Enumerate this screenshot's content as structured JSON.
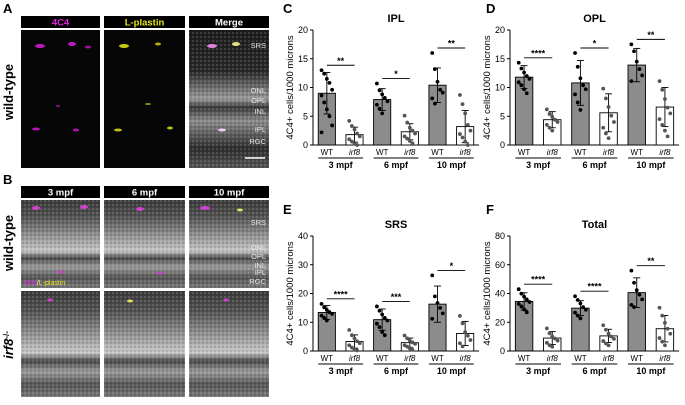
{
  "panel_letters": {
    "A": "A",
    "B": "B",
    "C": "C",
    "D": "D",
    "E": "E",
    "F": "F"
  },
  "micrographs": {
    "panel_a": {
      "headers": [
        "4C4",
        "L-plastin",
        "Merge"
      ],
      "row_label": "wild-type",
      "layer_labels": [
        "SRS",
        "ONL",
        "OPL",
        "INL",
        "IPL",
        "RGC"
      ],
      "colors": {
        "4C4": "#e020e0",
        "L-plastin": "#e8e820",
        "Merge": "#ffffff"
      }
    },
    "panel_b": {
      "headers": [
        "3 mpf",
        "6 mpf",
        "10 mpf"
      ],
      "row_labels": [
        "wild-type",
        "irf8",
        "-/-"
      ],
      "layer_labels": [
        "SRS",
        "ONL",
        "OPL",
        "INL",
        "IPL",
        "RGC"
      ],
      "stain_legend": [
        "4C4",
        "/",
        "L-plastin"
      ]
    }
  },
  "chart_data": [
    {
      "type": "bar",
      "panel": "C",
      "title": "IPL",
      "ylabel": "4C4+ cells/1000 microns",
      "ylim": [
        0,
        20
      ],
      "yticks": [
        0,
        5,
        10,
        15,
        20
      ],
      "categories": [
        "WT",
        "irf8",
        "WT",
        "irf8",
        "WT",
        "irf8"
      ],
      "groups": [
        "3 mpf",
        "6 mpf",
        "10 mpf"
      ],
      "values": [
        9.0,
        1.8,
        7.9,
        2.3,
        10.4,
        3.2
      ],
      "errors": [
        3.6,
        1.3,
        1.9,
        1.4,
        3.0,
        2.8
      ],
      "significance": [
        "**",
        "*",
        "**"
      ],
      "points": [
        [
          13.0,
          12.4,
          11.5,
          10.8,
          9.6,
          8.6,
          7.4,
          6.2,
          5.0,
          3.4,
          2.2
        ],
        [
          4.2,
          3.3,
          2.7,
          2.0,
          1.5,
          1.0,
          0.6,
          0.2,
          0.0
        ],
        [
          10.7,
          9.5,
          8.8,
          8.2,
          7.6,
          7.0,
          6.3,
          5.5
        ],
        [
          5.1,
          3.9,
          3.0,
          2.5,
          2.0,
          1.5,
          1.1,
          0.7,
          0.3
        ],
        [
          16.0,
          13.2,
          11.0,
          9.6,
          9.1,
          8.1,
          7.2
        ],
        [
          8.7,
          7.1,
          5.5,
          3.5,
          2.5,
          1.9,
          1.3,
          0.6,
          0.0
        ]
      ]
    },
    {
      "type": "bar",
      "panel": "D",
      "title": "OPL",
      "ylabel": "4C4+ cells/1000 microns",
      "ylim": [
        0,
        20
      ],
      "yticks": [
        0,
        5,
        10,
        15,
        20
      ],
      "categories": [
        "WT",
        "irf8",
        "WT",
        "irf8",
        "WT",
        "irf8"
      ],
      "groups": [
        "3 mpf",
        "6 mpf",
        "10 mpf"
      ],
      "values": [
        11.8,
        4.4,
        10.8,
        5.6,
        13.9,
        6.6
      ],
      "errors": [
        2.0,
        1.4,
        3.9,
        3.3,
        2.9,
        3.4
      ],
      "significance": [
        "****",
        "*",
        "**"
      ],
      "points": [
        [
          14.3,
          13.3,
          12.6,
          12.0,
          11.5,
          10.9,
          10.4,
          9.7,
          9.0
        ],
        [
          6.2,
          5.4,
          4.9,
          4.4,
          4.0,
          3.5,
          3.0,
          2.5
        ],
        [
          16.0,
          13.6,
          11.6,
          10.4,
          9.7,
          8.8,
          7.4,
          6.1
        ],
        [
          9.8,
          8.1,
          6.6,
          5.1,
          4.0,
          3.0,
          2.0,
          1.2
        ],
        [
          17.5,
          16.3,
          14.5,
          13.2,
          12.1,
          11.1
        ],
        [
          11.1,
          9.6,
          8.0,
          6.5,
          5.5,
          4.5,
          3.5,
          2.5,
          1.5
        ]
      ]
    },
    {
      "type": "bar",
      "panel": "E",
      "title": "SRS",
      "ylabel": "4C4+ cells/1000 microns",
      "ylim": [
        0,
        40
      ],
      "yticks": [
        0,
        10,
        20,
        30,
        40
      ],
      "categories": [
        "WT",
        "irf8",
        "WT",
        "irf8",
        "WT",
        "irf8"
      ],
      "groups": [
        "3 mpf",
        "6 mpf",
        "10 mpf"
      ],
      "values": [
        13.4,
        3.3,
        10.9,
        2.9,
        16.3,
        6.1
      ],
      "errors": [
        2.4,
        2.3,
        3.7,
        1.6,
        6.3,
        4.2
      ],
      "significance": [
        "****",
        "***",
        "*"
      ],
      "points": [
        [
          16.4,
          15.2,
          14.3,
          13.5,
          12.9,
          12.3,
          11.5,
          10.6
        ],
        [
          7.3,
          5.5,
          4.4,
          3.4,
          2.7,
          2.0,
          1.2,
          0.6,
          0.2
        ],
        [
          15.5,
          14.0,
          12.7,
          11.5,
          10.6,
          9.5,
          8.3,
          6.6,
          5.5
        ],
        [
          5.4,
          4.4,
          3.6,
          3.0,
          2.5,
          2.0,
          1.5,
          0.9,
          0.4
        ],
        [
          26.3,
          19.0,
          16.7,
          15.0,
          13.1,
          11.2
        ],
        [
          12.2,
          9.6,
          6.6,
          5.3,
          3.8,
          2.7,
          1.6
        ]
      ]
    },
    {
      "type": "bar",
      "panel": "F",
      "title": "Total",
      "ylabel": "4C4+ cells/1000 microns",
      "ylim": [
        0,
        80
      ],
      "yticks": [
        0,
        20,
        40,
        60,
        80
      ],
      "categories": [
        "WT",
        "irf8",
        "WT",
        "irf8",
        "WT",
        "irf8"
      ],
      "groups": [
        "3 mpf",
        "6 mpf",
        "10 mpf"
      ],
      "values": [
        34.5,
        9.0,
        29.8,
        10.5,
        40.6,
        15.5
      ],
      "errors": [
        6.0,
        4.5,
        5.2,
        4.6,
        10.3,
        9.2
      ],
      "significance": [
        "****",
        "****",
        "**"
      ],
      "points": [
        [
          43.0,
          39.9,
          37.8,
          35.9,
          34.1,
          32.8,
          31.0,
          28.9,
          26.9
        ],
        [
          15.7,
          12.3,
          10.1,
          8.7,
          7.2,
          5.7,
          4.0,
          3.0
        ],
        [
          38.1,
          35.5,
          33.1,
          30.5,
          28.7,
          26.7,
          24.6,
          22.7
        ],
        [
          17.9,
          14.8,
          12.1,
          10.1,
          8.4,
          6.9,
          5.2,
          3.9
        ],
        [
          55.9,
          47.5,
          42.3,
          39.2,
          35.9,
          32.1,
          30.5
        ],
        [
          30.1,
          24.6,
          19.6,
          15.5,
          12.0,
          9.0,
          6.5,
          4.0
        ]
      ]
    }
  ]
}
